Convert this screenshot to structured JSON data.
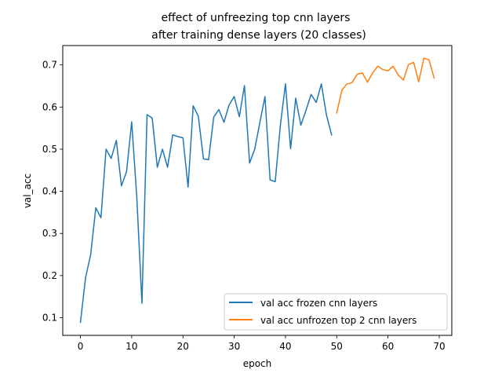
{
  "chart_data": {
    "type": "line",
    "title_lines": [
      "effect of unfreezing top cnn layers",
      "after training dense layers (20 classes)"
    ],
    "xlabel": "epoch",
    "ylabel": "val_acc",
    "xlim": [
      -3.45,
      72.45
    ],
    "ylim": [
      0.058,
      0.746
    ],
    "xticks": [
      0,
      10,
      20,
      30,
      40,
      50,
      60,
      70
    ],
    "yticks": [
      0.1,
      0.2,
      0.3,
      0.4,
      0.5,
      0.6,
      0.7
    ],
    "grid": false,
    "legend_position": "lower right",
    "series": [
      {
        "name": "val acc frozen cnn layers",
        "color": "#1f77b4",
        "x": [
          0,
          1,
          2,
          3,
          4,
          5,
          6,
          7,
          8,
          9,
          10,
          11,
          12,
          13,
          14,
          15,
          16,
          17,
          18,
          19,
          20,
          21,
          22,
          23,
          24,
          25,
          26,
          27,
          28,
          29,
          30,
          31,
          32,
          33,
          34,
          35,
          36,
          37,
          38,
          39,
          40,
          41,
          42,
          43,
          44,
          45,
          46,
          47,
          48,
          49
        ],
        "y": [
          0.089,
          0.195,
          0.25,
          0.361,
          0.337,
          0.5,
          0.478,
          0.521,
          0.413,
          0.447,
          0.565,
          0.385,
          0.134,
          0.582,
          0.574,
          0.457,
          0.5,
          0.457,
          0.534,
          0.53,
          0.527,
          0.41,
          0.603,
          0.578,
          0.477,
          0.475,
          0.576,
          0.594,
          0.564,
          0.605,
          0.625,
          0.577,
          0.651,
          0.467,
          0.5,
          0.563,
          0.625,
          0.427,
          0.423,
          0.556,
          0.655,
          0.501,
          0.621,
          0.557,
          0.592,
          0.63,
          0.611,
          0.655,
          0.581,
          0.534
        ]
      },
      {
        "name": "val acc unfrozen top 2 cnn layers",
        "color": "#ff7f0e",
        "x": [
          50,
          51,
          52,
          53,
          54,
          55,
          56,
          57,
          58,
          59,
          60,
          61,
          62,
          63,
          64,
          65,
          66,
          67,
          68,
          69
        ],
        "y": [
          0.586,
          0.64,
          0.655,
          0.658,
          0.678,
          0.681,
          0.659,
          0.681,
          0.697,
          0.689,
          0.686,
          0.697,
          0.676,
          0.664,
          0.701,
          0.706,
          0.66,
          0.716,
          0.712,
          0.669
        ]
      }
    ]
  }
}
